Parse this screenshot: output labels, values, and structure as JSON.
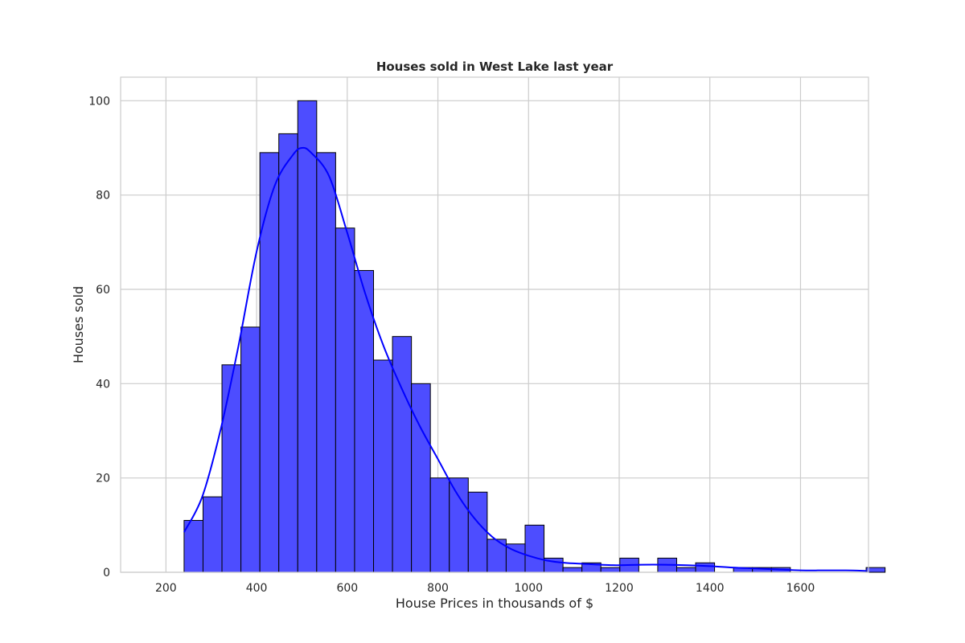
{
  "chart_data": {
    "type": "bar",
    "subtype": "histogram",
    "title": "Houses sold in West Lake last year",
    "xlabel": "House Prices in thousands of $",
    "ylabel": "Houses sold",
    "xlim": [
      100,
      1750
    ],
    "ylim": [
      0,
      105
    ],
    "grid": true,
    "x_ticks": [
      200,
      400,
      600,
      800,
      1000,
      1200,
      1400,
      1600
    ],
    "y_ticks": [
      0,
      20,
      40,
      60,
      80,
      100
    ],
    "bin_start": 240,
    "bin_width": 41.8,
    "counts": [
      11,
      16,
      44,
      52,
      89,
      93,
      100,
      89,
      73,
      64,
      45,
      50,
      40,
      20,
      20,
      17,
      7,
      6,
      10,
      3,
      1,
      2,
      1,
      3,
      0,
      3,
      1,
      2,
      0,
      1,
      1,
      1,
      0,
      0,
      0,
      0,
      1
    ],
    "kde": {
      "x": [
        240,
        280,
        320,
        360,
        400,
        440,
        480,
        500,
        520,
        560,
        600,
        640,
        680,
        720,
        760,
        800,
        840,
        880,
        920,
        960,
        1000,
        1040,
        1080,
        1120,
        1160,
        1200,
        1250,
        1300,
        1350,
        1400,
        1450,
        1500,
        1550,
        1600,
        1650,
        1700,
        1745
      ],
      "y": [
        8.5,
        16,
        30,
        48,
        68,
        82,
        88.5,
        90,
        89,
        84,
        72,
        59,
        48,
        39,
        31,
        24,
        17,
        11.5,
        7.5,
        5,
        3.5,
        2.5,
        2,
        1.8,
        1.6,
        1.5,
        1.6,
        1.6,
        1.5,
        1.3,
        1,
        0.8,
        0.6,
        0.4,
        0.4,
        0.4,
        0.3
      ]
    },
    "colors": {
      "bar_fill": "#4d4dff",
      "bar_edge": "#000000",
      "kde_line": "#0000ff",
      "grid": "#cccccc",
      "frame": "#cccccc"
    }
  }
}
